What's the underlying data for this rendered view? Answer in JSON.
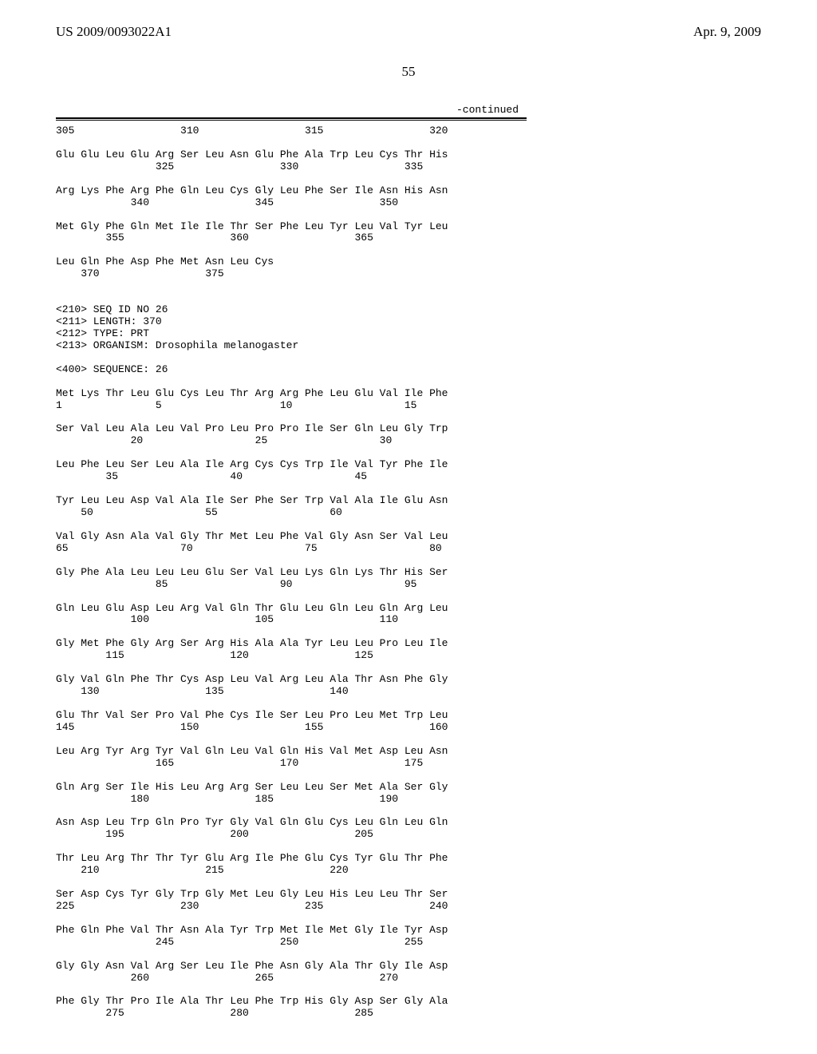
{
  "header": {
    "left": "US 2009/0093022A1",
    "right": "Apr. 9, 2009"
  },
  "pageNumber": "55",
  "continued": "-continued",
  "sequence": "305                 310                 315                 320\n\nGlu Glu Leu Glu Arg Ser Leu Asn Glu Phe Ala Trp Leu Cys Thr His\n                325                 330                 335\n\nArg Lys Phe Arg Phe Gln Leu Cys Gly Leu Phe Ser Ile Asn His Asn\n            340                 345                 350\n\nMet Gly Phe Gln Met Ile Ile Thr Ser Phe Leu Tyr Leu Val Tyr Leu\n        355                 360                 365\n\nLeu Gln Phe Asp Phe Met Asn Leu Cys\n    370                 375\n\n\n<210> SEQ ID NO 26\n<211> LENGTH: 370\n<212> TYPE: PRT\n<213> ORGANISM: Drosophila melanogaster\n\n<400> SEQUENCE: 26\n\nMet Lys Thr Leu Glu Cys Leu Thr Arg Arg Phe Leu Glu Val Ile Phe\n1               5                   10                  15\n\nSer Val Leu Ala Leu Val Pro Leu Pro Pro Ile Ser Gln Leu Gly Trp\n            20                  25                  30\n\nLeu Phe Leu Ser Leu Ala Ile Arg Cys Cys Trp Ile Val Tyr Phe Ile\n        35                  40                  45\n\nTyr Leu Leu Asp Val Ala Ile Ser Phe Ser Trp Val Ala Ile Glu Asn\n    50                  55                  60\n\nVal Gly Asn Ala Val Gly Thr Met Leu Phe Val Gly Asn Ser Val Leu\n65                  70                  75                  80\n\nGly Phe Ala Leu Leu Leu Glu Ser Val Leu Lys Gln Lys Thr His Ser\n                85                  90                  95\n\nGln Leu Glu Asp Leu Arg Val Gln Thr Glu Leu Gln Leu Gln Arg Leu\n            100                 105                 110\n\nGly Met Phe Gly Arg Ser Arg His Ala Ala Tyr Leu Leu Pro Leu Ile\n        115                 120                 125\n\nGly Val Gln Phe Thr Cys Asp Leu Val Arg Leu Ala Thr Asn Phe Gly\n    130                 135                 140\n\nGlu Thr Val Ser Pro Val Phe Cys Ile Ser Leu Pro Leu Met Trp Leu\n145                 150                 155                 160\n\nLeu Arg Tyr Arg Tyr Val Gln Leu Val Gln His Val Met Asp Leu Asn\n                165                 170                 175\n\nGln Arg Ser Ile His Leu Arg Arg Ser Leu Leu Ser Met Ala Ser Gly\n            180                 185                 190\n\nAsn Asp Leu Trp Gln Pro Tyr Gly Val Gln Glu Cys Leu Gln Leu Gln\n        195                 200                 205\n\nThr Leu Arg Thr Thr Tyr Glu Arg Ile Phe Glu Cys Tyr Glu Thr Phe\n    210                 215                 220\n\nSer Asp Cys Tyr Gly Trp Gly Met Leu Gly Leu His Leu Leu Thr Ser\n225                 230                 235                 240\n\nPhe Gln Phe Val Thr Asn Ala Tyr Trp Met Ile Met Gly Ile Tyr Asp\n                245                 250                 255\n\nGly Gly Asn Val Arg Ser Leu Ile Phe Asn Gly Ala Thr Gly Ile Asp\n            260                 265                 270\n\nPhe Gly Thr Pro Ile Ala Thr Leu Phe Trp His Gly Asp Ser Gly Ala\n        275                 280                 285"
}
